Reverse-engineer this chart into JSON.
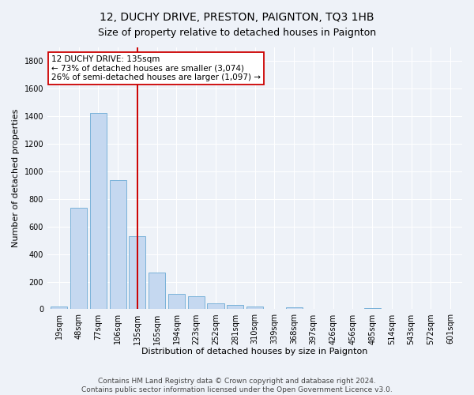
{
  "title": "12, DUCHY DRIVE, PRESTON, PAIGNTON, TQ3 1HB",
  "subtitle": "Size of property relative to detached houses in Paignton",
  "xlabel": "Distribution of detached houses by size in Paignton",
  "ylabel": "Number of detached properties",
  "bar_labels": [
    "19sqm",
    "48sqm",
    "77sqm",
    "106sqm",
    "135sqm",
    "165sqm",
    "194sqm",
    "223sqm",
    "252sqm",
    "281sqm",
    "310sqm",
    "339sqm",
    "368sqm",
    "397sqm",
    "426sqm",
    "456sqm",
    "485sqm",
    "514sqm",
    "543sqm",
    "572sqm",
    "601sqm"
  ],
  "bar_values": [
    20,
    735,
    1425,
    935,
    530,
    265,
    110,
    95,
    45,
    30,
    18,
    0,
    15,
    0,
    0,
    0,
    8,
    0,
    0,
    0,
    0
  ],
  "highlight_index": 4,
  "bar_color": "#c5d8f0",
  "bar_edge_color": "#6aaad4",
  "vline_x": 4,
  "vline_color": "#cc0000",
  "annotation_text": "12 DUCHY DRIVE: 135sqm\n← 73% of detached houses are smaller (3,074)\n26% of semi-detached houses are larger (1,097) →",
  "annotation_box_color": "#ffffff",
  "annotation_box_edge_color": "#cc0000",
  "ylim": [
    0,
    1900
  ],
  "yticks": [
    0,
    200,
    400,
    600,
    800,
    1000,
    1200,
    1400,
    1600,
    1800
  ],
  "footer": "Contains HM Land Registry data © Crown copyright and database right 2024.\nContains public sector information licensed under the Open Government Licence v3.0.",
  "bg_color": "#eef2f8",
  "grid_color": "#ffffff",
  "title_fontsize": 10,
  "subtitle_fontsize": 9,
  "axis_label_fontsize": 8,
  "tick_fontsize": 7,
  "footer_fontsize": 6.5
}
